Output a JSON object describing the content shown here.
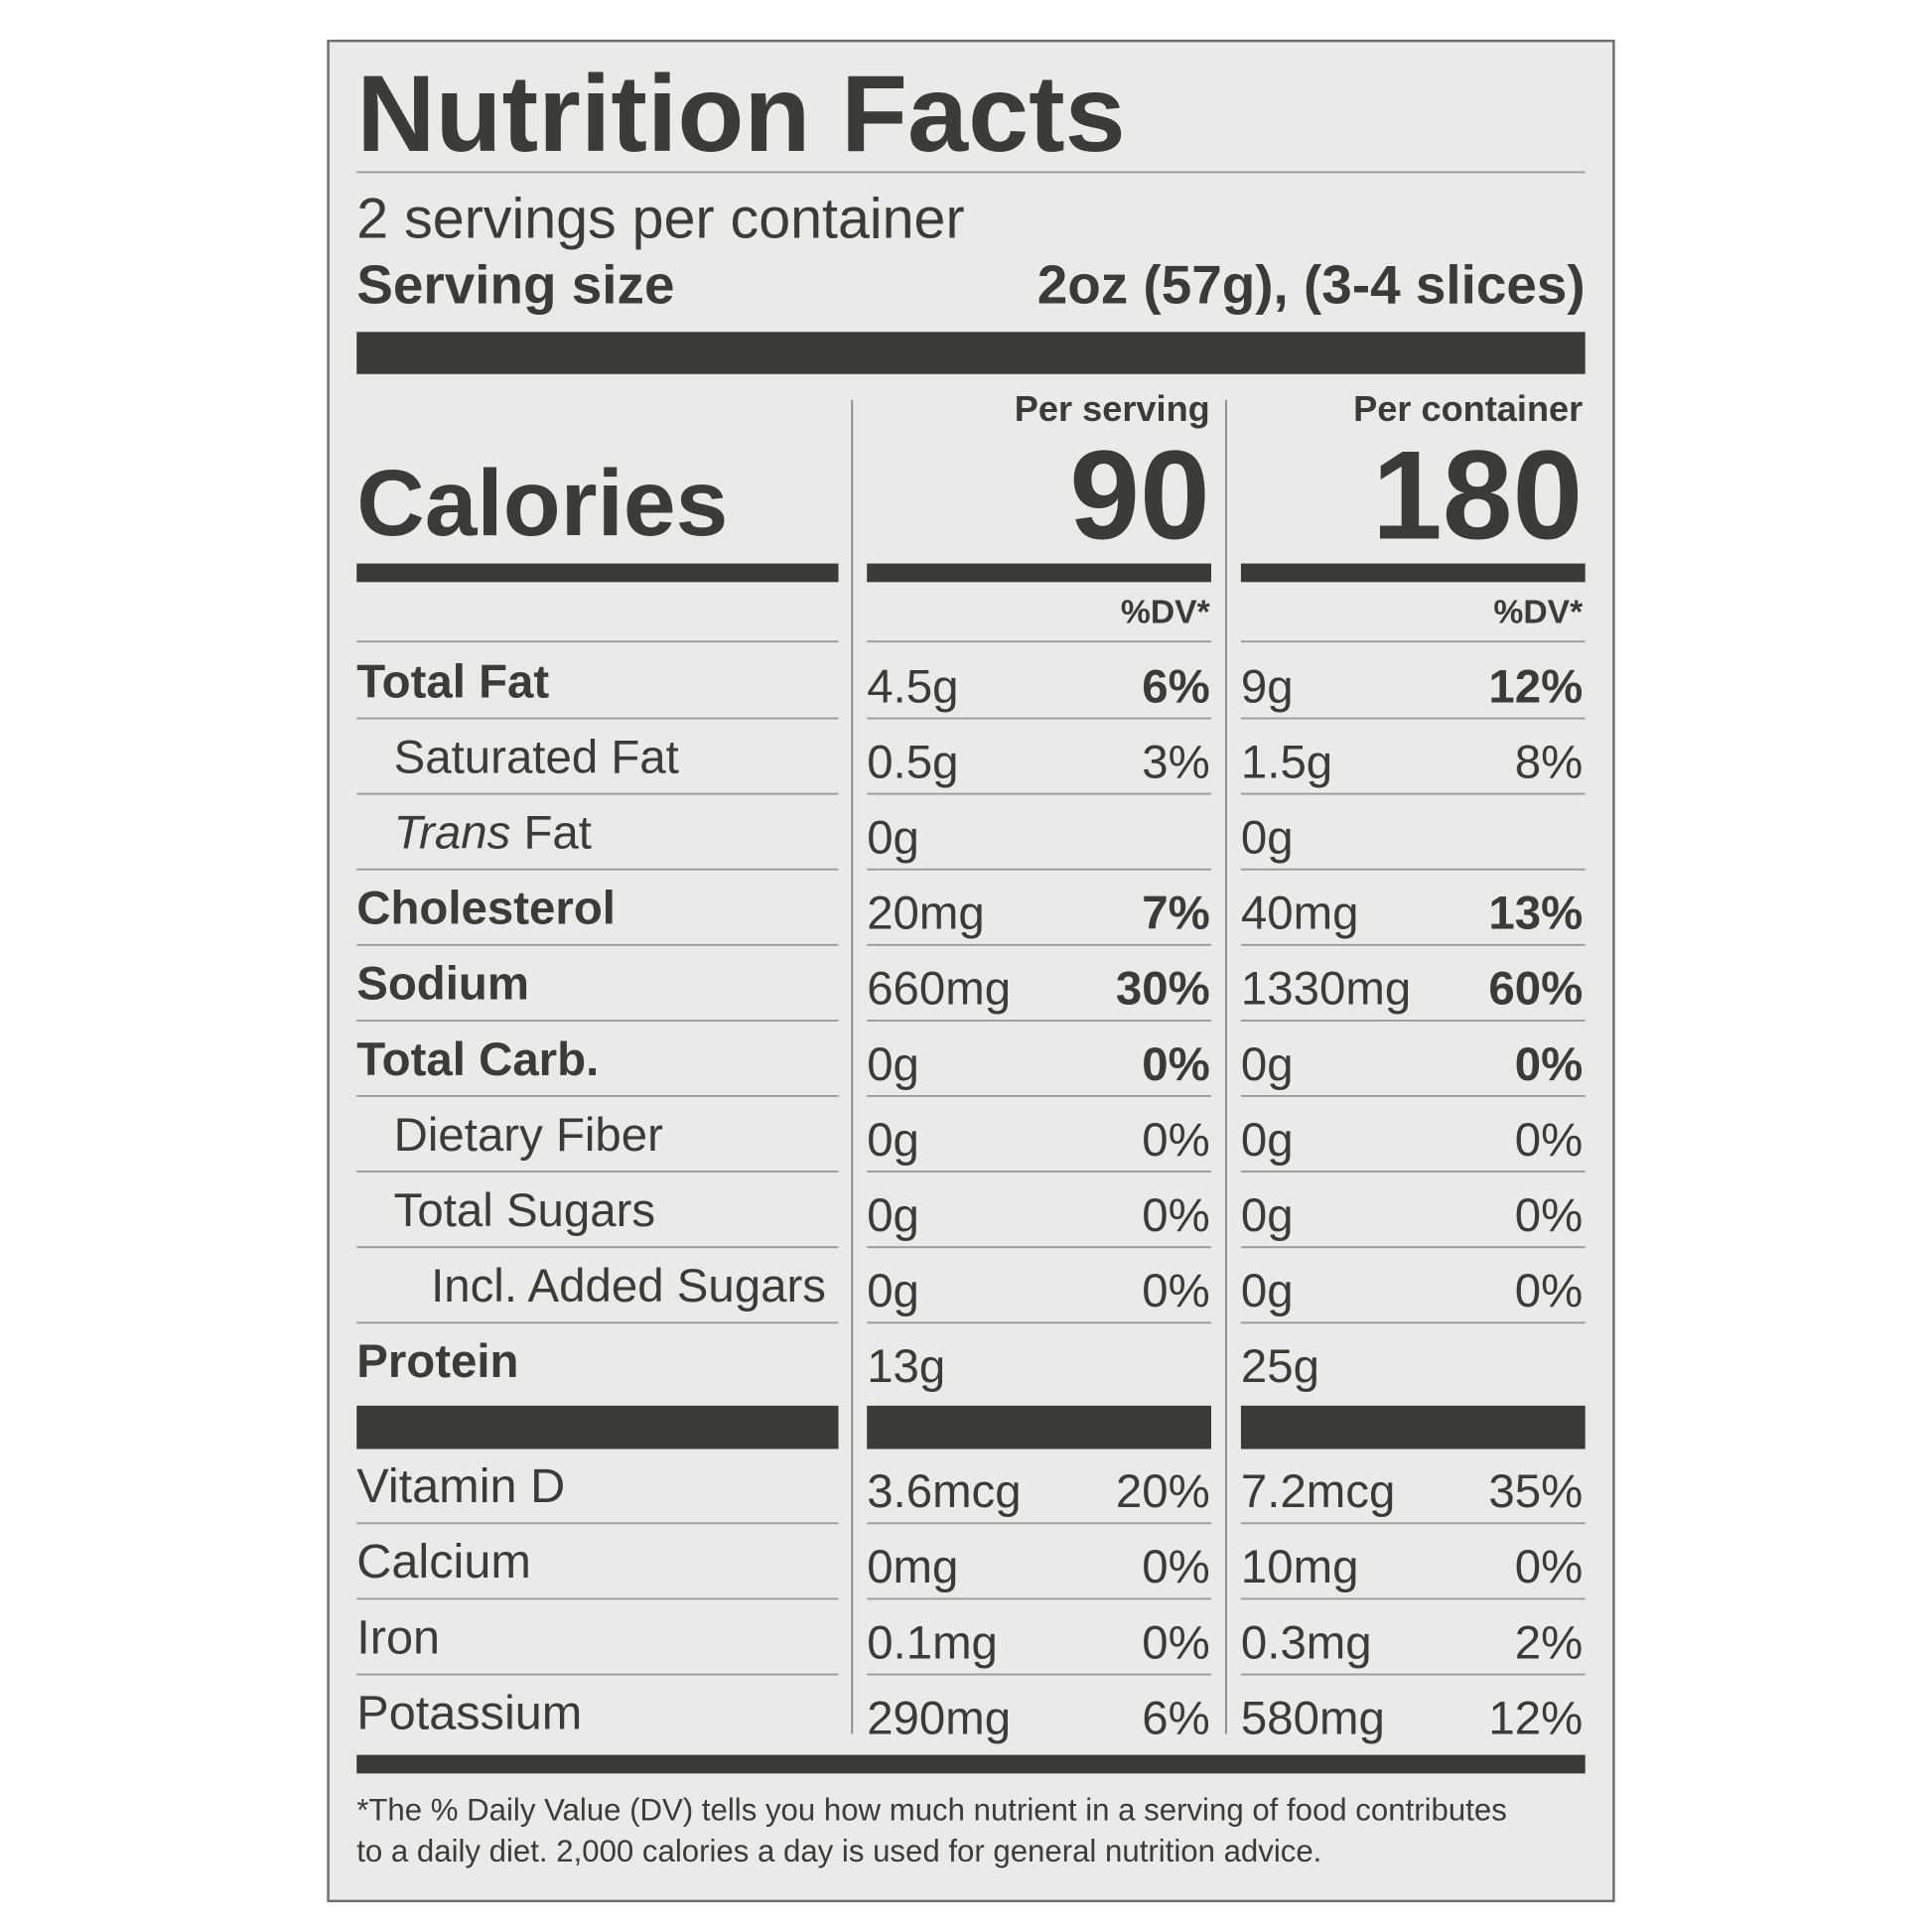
{
  "header": {
    "title": "Nutrition Facts",
    "servings": "2 servings per container",
    "serving_size_label": "Serving size",
    "serving_size_value": "2oz (57g), (3-4 slices)"
  },
  "columns": {
    "per_serving": "Per serving",
    "per_container": "Per container",
    "dv_serving": "%DV*",
    "dv_container": "%DV*"
  },
  "calories": {
    "label": "Calories",
    "per_serving": 90,
    "per_container": 180
  },
  "nutrients": [
    {
      "name": "Total Fat",
      "serving_amount": "4.5g",
      "serving_dv": "6%",
      "container_amount": "9g",
      "container_dv": "12%",
      "sub": [
        {
          "name": "Saturated Fat",
          "serving_amount": "0.5g",
          "serving_dv": "3%",
          "container_amount": "1.5g",
          "container_dv": "8%"
        },
        {
          "name_italic": "Trans",
          "name": "Fat",
          "serving_amount": "0g",
          "container_amount": "0g"
        }
      ]
    },
    {
      "name": "Cholesterol",
      "serving_amount": "20mg",
      "serving_dv": "7%",
      "container_amount": "40mg",
      "container_dv": "13%"
    },
    {
      "name": "Sodium",
      "serving_amount": "660mg",
      "serving_dv": "30%",
      "container_amount": "1330mg",
      "container_dv": "60%"
    },
    {
      "name": "Total Carb.",
      "serving_amount": "0g",
      "serving_dv": "0%",
      "container_amount": "0g",
      "container_dv": "0%",
      "sub": [
        {
          "name": "Dietary Fiber",
          "serving_amount": "0g",
          "serving_dv": "0%",
          "container_amount": "0g",
          "container_dv": "0%"
        },
        {
          "name": "Total Sugars",
          "serving_amount": "0g",
          "serving_dv": "0%",
          "container_amount": "0g",
          "container_dv": "0%",
          "sub": [
            {
              "name": "Incl. Added Sugars",
              "serving_amount": "0g",
              "serving_dv": "0%",
              "container_amount": "0g",
              "container_dv": "0%"
            }
          ]
        }
      ]
    },
    {
      "name": "Protein",
      "serving_amount": "13g",
      "container_amount": "25g"
    }
  ],
  "vitamins": [
    {
      "name": "Vitamin D",
      "serving_amount": "3.6mcg",
      "serving_dv": "20%",
      "container_amount": "7.2mcg",
      "container_dv": "35%"
    },
    {
      "name": "Calcium",
      "serving_amount": "0mg",
      "serving_dv": "0%",
      "container_amount": "10mg",
      "container_dv": "0%"
    },
    {
      "name": "Iron",
      "serving_amount": "0.1mg",
      "serving_dv": "0%",
      "container_amount": "0.3mg",
      "container_dv": "2%"
    },
    {
      "name": "Potassium",
      "serving_amount": "290mg",
      "serving_dv": "6%",
      "container_amount": "580mg",
      "container_dv": "12%"
    }
  ],
  "footnote": [
    "*The % Daily Value (DV) tells you how much nutrient in a serving of food contributes",
    "to a daily diet. 2,000 calories a day is used for general nutrition advice."
  ]
}
